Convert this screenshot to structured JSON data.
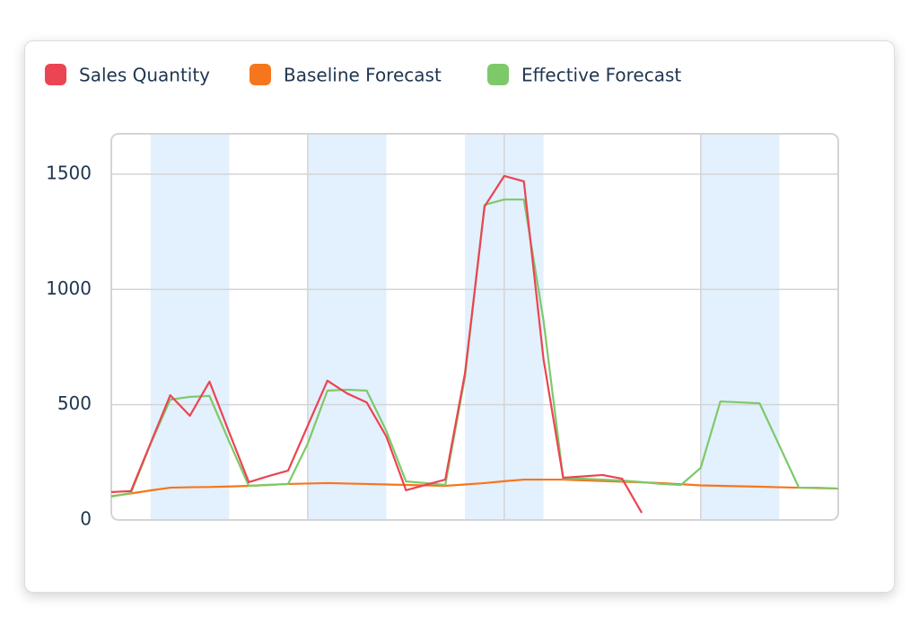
{
  "chart_data": {
    "type": "line",
    "x": [
      0,
      1,
      2,
      3,
      4,
      5,
      6,
      7,
      8,
      9,
      10,
      11,
      12,
      13,
      14,
      15,
      16,
      17,
      18,
      19,
      20,
      21,
      22,
      23,
      24,
      25,
      26,
      27,
      28,
      29,
      30,
      31,
      32,
      33,
      34,
      35,
      36,
      37
    ],
    "xlim": [
      0,
      37
    ],
    "xticks": [
      10,
      20,
      30
    ],
    "ylim": [
      0,
      1675
    ],
    "yticks": [
      0,
      500,
      1000,
      1500
    ],
    "grid": true,
    "highlight_ranges": [
      [
        2,
        6
      ],
      [
        10,
        14
      ],
      [
        18,
        22
      ],
      [
        30,
        34
      ]
    ],
    "highlight_color": "#e3f0fd",
    "series": [
      {
        "name": "Sales Quantity",
        "color": "#eb4452",
        "values": [
          121,
          125,
          333,
          541,
          452,
          600,
          380,
          164,
          190,
          214,
          409,
          604,
          549,
          510,
          362,
          129,
          152,
          175,
          635,
          1360,
          1492,
          1469,
          697,
          183,
          189,
          195,
          179,
          31,
          null,
          null,
          null,
          null,
          null,
          null,
          null,
          null,
          null,
          null
        ]
      },
      {
        "name": "Baseline Forecast",
        "color": "#f6761d",
        "values": [
          103,
          115,
          128,
          140,
          142,
          143,
          145,
          148,
          152,
          156,
          158,
          160,
          158,
          156,
          154,
          152,
          150,
          148,
          154,
          160,
          168,
          175,
          175,
          175,
          172,
          169,
          166,
          163,
          160,
          155,
          150,
          148,
          146,
          144,
          142,
          140,
          138,
          136
        ]
      },
      {
        "name": "Effective Forecast",
        "color": "#7dc96a",
        "values": [
          101,
          117,
          330,
          522,
          534,
          538,
          340,
          148,
          152,
          156,
          331,
          561,
          565,
          561,
          386,
          167,
          160,
          152,
          620,
          1367,
          1390,
          1390,
          865,
          179,
          179,
          175,
          171,
          164,
          156,
          152,
          226,
          514,
          510,
          506,
          323,
          140,
          140,
          136
        ]
      }
    ]
  }
}
